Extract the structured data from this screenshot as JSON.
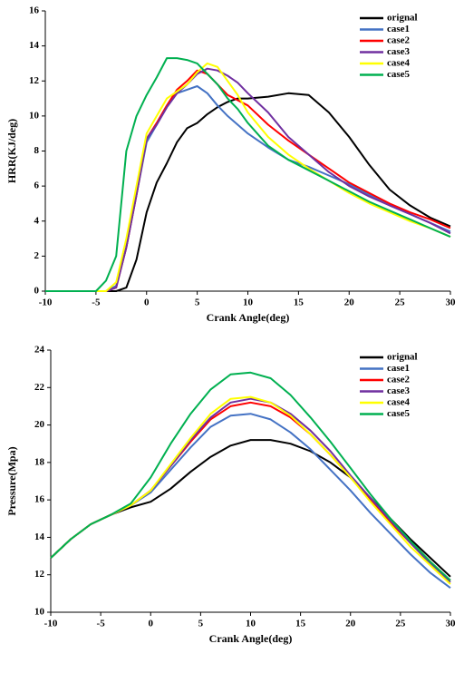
{
  "chart_data": [
    {
      "type": "line",
      "xlabel": "Crank Angle(deg)",
      "ylabel": "HRR(KJ/deg)",
      "x": [
        -10,
        -5,
        -4,
        -3,
        -2,
        -1,
        0,
        1,
        2,
        3,
        4,
        5,
        6,
        7,
        8,
        9,
        10,
        12,
        14,
        16,
        18,
        20,
        22,
        24,
        26,
        28,
        30
      ],
      "xlim": [
        -10,
        30
      ],
      "xticks": [
        -10,
        -5,
        0,
        5,
        10,
        15,
        20,
        25,
        30
      ],
      "ylim": [
        0,
        16
      ],
      "yticks": [
        0,
        2,
        4,
        6,
        8,
        10,
        12,
        14,
        16
      ],
      "legend": "upper right",
      "series": [
        {
          "name": "orignal",
          "color": "#000000",
          "values": [
            0,
            0,
            0,
            0,
            0.2,
            1.8,
            4.5,
            6.2,
            7.3,
            8.5,
            9.3,
            9.6,
            10.1,
            10.5,
            10.8,
            11,
            11,
            11.1,
            11.3,
            11.2,
            10.2,
            8.8,
            7.2,
            5.8,
            4.9,
            4.2,
            3.7
          ]
        },
        {
          "name": "case1",
          "color": "#4472c4",
          "values": [
            0,
            0,
            0,
            0.3,
            2.5,
            5.5,
            8.5,
            9.5,
            10.5,
            11.3,
            11.5,
            11.7,
            11.3,
            10.6,
            10,
            9.5,
            9,
            8.2,
            7.5,
            7.1,
            6.6,
            6.1,
            5.5,
            4.9,
            4.4,
            3.9,
            3.4
          ]
        },
        {
          "name": "case2",
          "color": "#ff0000",
          "values": [
            0,
            0,
            0,
            0.2,
            2.5,
            5.5,
            8.7,
            9.6,
            10.6,
            11.5,
            12,
            12.6,
            12.4,
            11.8,
            11.2,
            10.9,
            10.6,
            9.5,
            8.6,
            7.8,
            7,
            6.2,
            5.6,
            5,
            4.5,
            4.1,
            3.6
          ]
        },
        {
          "name": "case3",
          "color": "#7030a0",
          "values": [
            0,
            0,
            0,
            0.2,
            2.5,
            5.5,
            8.7,
            9.5,
            10.5,
            11.3,
            11.8,
            12.4,
            12.7,
            12.6,
            12.3,
            11.9,
            11.3,
            10.2,
            8.8,
            7.8,
            6.8,
            6,
            5.4,
            4.9,
            4.4,
            3.9,
            3.3
          ]
        },
        {
          "name": "case4",
          "color": "#ffff00",
          "values": [
            0,
            0,
            0,
            0.5,
            3,
            6,
            9,
            10,
            11,
            11.4,
            11.8,
            12.5,
            13,
            12.8,
            12,
            11.2,
            10.2,
            8.8,
            7.8,
            7,
            6.3,
            5.6,
            5,
            4.5,
            4,
            3.6,
            3.1
          ]
        },
        {
          "name": "case5",
          "color": "#00b050",
          "values": [
            0,
            0,
            0.6,
            2,
            8,
            10,
            11.2,
            12.2,
            13.3,
            13.3,
            13.2,
            13,
            12.4,
            11.8,
            11,
            10.4,
            9.6,
            8.3,
            7.5,
            6.9,
            6.3,
            5.7,
            5.1,
            4.6,
            4.1,
            3.6,
            3.1
          ]
        }
      ]
    },
    {
      "type": "line",
      "xlabel": "Crank Angle(deg)",
      "ylabel": "Pressure(Mpa)",
      "x": [
        -10,
        -8,
        -6,
        -4,
        -2,
        0,
        2,
        4,
        6,
        8,
        10,
        12,
        14,
        16,
        18,
        20,
        22,
        24,
        26,
        28,
        30
      ],
      "xlim": [
        -10,
        30
      ],
      "xticks": [
        -10,
        -5,
        0,
        5,
        10,
        15,
        20,
        25,
        30
      ],
      "ylim": [
        10,
        24
      ],
      "yticks": [
        10,
        12,
        14,
        16,
        18,
        20,
        22,
        24
      ],
      "legend": "upper right",
      "series": [
        {
          "name": "orignal",
          "color": "#000000",
          "values": [
            12.9,
            13.9,
            14.7,
            15.2,
            15.6,
            15.9,
            16.6,
            17.5,
            18.3,
            18.9,
            19.2,
            19.2,
            19,
            18.6,
            18,
            17.2,
            16.1,
            15,
            13.9,
            12.9,
            11.9
          ]
        },
        {
          "name": "case1",
          "color": "#4472c4",
          "values": [
            12.9,
            13.9,
            14.7,
            15.2,
            15.7,
            16.4,
            17.6,
            18.8,
            19.9,
            20.5,
            20.6,
            20.3,
            19.6,
            18.7,
            17.6,
            16.5,
            15.3,
            14.2,
            13.1,
            12.1,
            11.3
          ]
        },
        {
          "name": "case2",
          "color": "#ff0000",
          "values": [
            12.9,
            13.9,
            14.7,
            15.2,
            15.7,
            16.5,
            17.8,
            19.1,
            20.3,
            21,
            21.2,
            21,
            20.4,
            19.5,
            18.4,
            17.2,
            16,
            14.8,
            13.7,
            12.6,
            11.7
          ]
        },
        {
          "name": "case3",
          "color": "#7030a0",
          "values": [
            12.9,
            13.9,
            14.7,
            15.2,
            15.7,
            16.5,
            17.8,
            19.2,
            20.4,
            21.2,
            21.4,
            21.2,
            20.6,
            19.7,
            18.6,
            17.3,
            16.1,
            14.9,
            13.7,
            12.6,
            11.6
          ]
        },
        {
          "name": "case4",
          "color": "#ffff00",
          "values": [
            12.9,
            13.9,
            14.7,
            15.2,
            15.7,
            16.5,
            17.9,
            19.3,
            20.6,
            21.4,
            21.5,
            21.2,
            20.5,
            19.5,
            18.4,
            17.2,
            15.9,
            14.7,
            13.5,
            12.5,
            11.5
          ]
        },
        {
          "name": "case5",
          "color": "#00b050",
          "values": [
            12.9,
            13.9,
            14.7,
            15.2,
            15.8,
            17.2,
            19,
            20.6,
            21.9,
            22.7,
            22.8,
            22.5,
            21.6,
            20.4,
            19.1,
            17.7,
            16.3,
            15,
            13.8,
            12.7,
            11.7
          ]
        }
      ]
    }
  ]
}
